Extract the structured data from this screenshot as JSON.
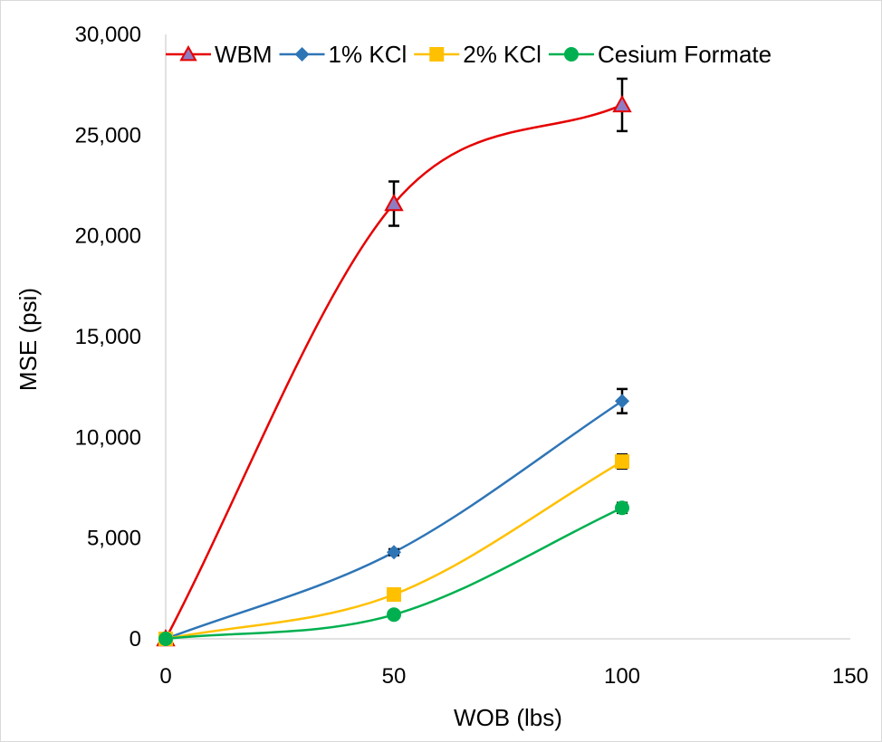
{
  "chart_data": {
    "type": "line",
    "title": "",
    "xlabel": "WOB (lbs)",
    "ylabel": "MSE (psi)",
    "xlim": [
      0,
      150
    ],
    "ylim": [
      0,
      30000
    ],
    "x_ticks": [
      0,
      50,
      100,
      150
    ],
    "y_ticks": [
      0,
      5000,
      10000,
      15000,
      20000,
      25000,
      30000
    ],
    "x_tick_labels": [
      "0",
      "50",
      "100",
      "150"
    ],
    "y_tick_labels": [
      "0",
      "5,000",
      "10,000",
      "15,000",
      "20,000",
      "25,000",
      "30,000"
    ],
    "grid": false,
    "smoothed": true,
    "legend_position": "top",
    "series": [
      {
        "name": "WBM",
        "color": "#e60000",
        "marker": "triangle",
        "marker_fill": "#8e7cc3",
        "x": [
          0,
          50,
          100
        ],
        "y": [
          0,
          21600,
          26500
        ],
        "error": [
          0,
          1100,
          1300
        ]
      },
      {
        "name": "1% KCl",
        "color": "#2e75b6",
        "marker": "diamond",
        "marker_fill": "#2e75b6",
        "x": [
          0,
          50,
          100
        ],
        "y": [
          0,
          4300,
          11800
        ],
        "error": [
          0,
          150,
          600
        ]
      },
      {
        "name": "2% KCl",
        "color": "#ffc000",
        "marker": "square",
        "marker_fill": "#ffc000",
        "x": [
          0,
          50,
          100
        ],
        "y": [
          0,
          2200,
          8800
        ],
        "error": [
          0,
          100,
          350
        ]
      },
      {
        "name": "Cesium Formate",
        "color": "#00b050",
        "marker": "circle",
        "marker_fill": "#00b050",
        "x": [
          0,
          50,
          100
        ],
        "y": [
          0,
          1200,
          6500
        ],
        "error": [
          0,
          80,
          250
        ]
      }
    ]
  }
}
